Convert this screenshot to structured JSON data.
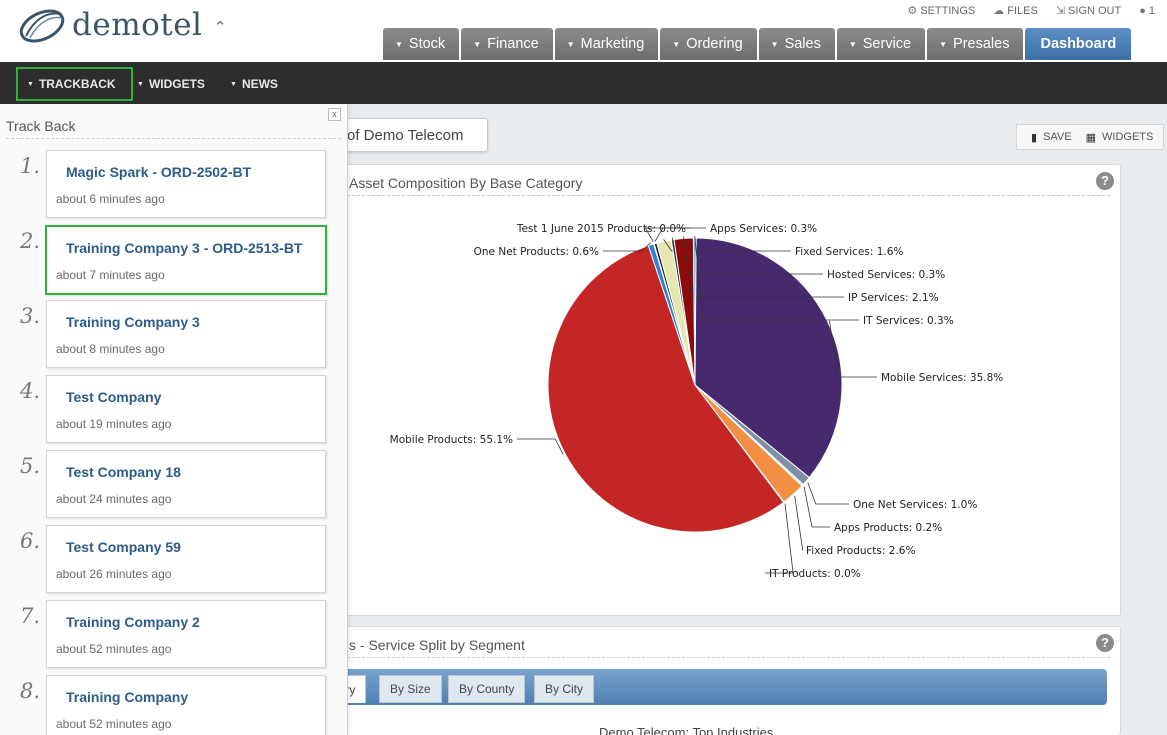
{
  "header": {
    "logo_text": "demotel",
    "toplinks": [
      {
        "icon": "gear-icon",
        "label": "SETTINGS"
      },
      {
        "icon": "cloud-icon",
        "label": "FILES"
      },
      {
        "icon": "signout-icon",
        "label": "SIGN OUT"
      },
      {
        "icon": "chat-icon",
        "label": "1"
      }
    ],
    "tabs": [
      {
        "label": "Stock"
      },
      {
        "label": "Finance"
      },
      {
        "label": "Marketing"
      },
      {
        "label": "Ordering"
      },
      {
        "label": "Sales"
      },
      {
        "label": "Service"
      },
      {
        "label": "Presales"
      },
      {
        "label": "Dashboard",
        "active": true
      }
    ]
  },
  "subnav": {
    "items": [
      {
        "label": "TRACKBACK"
      },
      {
        "label": "WIDGETS"
      },
      {
        "label": "NEWS"
      }
    ]
  },
  "dashboard": {
    "title": "of Demo Telecom",
    "save_label": "SAVE",
    "widgets_label": "WIDGETS"
  },
  "panel1": {
    "title": "Asset Composition By Base Category",
    "help": "?"
  },
  "panel2": {
    "title": "s - Service Split by Segment",
    "help": "?",
    "tabs": [
      {
        "label": "try"
      },
      {
        "label": "By Size"
      },
      {
        "label": "By County"
      },
      {
        "label": "By City"
      }
    ],
    "caption": "Demo Telecom: Top Industries"
  },
  "chart_data": {
    "type": "pie",
    "title": "Asset Composition By Base Category",
    "series": [
      {
        "name": "Mobile Services",
        "value": 35.8,
        "label": "Mobile Services: 35.8%",
        "color": "#472a6e"
      },
      {
        "name": "One Net Services",
        "value": 1.0,
        "label": "One Net Services: 1.0%",
        "color": "#7f8fa6"
      },
      {
        "name": "Apps Products",
        "value": 0.2,
        "label": "Apps Products: 0.2%",
        "color": "#91e8e1"
      },
      {
        "name": "Fixed Products",
        "value": 2.6,
        "label": "Fixed Products: 2.6%",
        "color": "#f28f43"
      },
      {
        "name": "IT Products",
        "value": 0.0,
        "label": "IT Products: 0.0%",
        "color": "#77a1e5"
      },
      {
        "name": "Mobile Products",
        "value": 55.1,
        "label": "Mobile Products: 55.1%",
        "color": "#c42525"
      },
      {
        "name": "One Net Products",
        "value": 0.6,
        "label": "One Net Products: 0.6%",
        "color": "#2f7ed8"
      },
      {
        "name": "Test 1 June 2015 Products",
        "value": 0.0,
        "label": "Test 1 June 2015 Products: 0.0%",
        "color": "#a6c96a"
      },
      {
        "name": "Apps Services",
        "value": 0.3,
        "label": "Apps Services: 0.3%",
        "color": "#0d233a"
      },
      {
        "name": "Fixed Services",
        "value": 1.6,
        "label": "Fixed Services: 1.6%",
        "color": "#e6e6b0"
      },
      {
        "name": "Hosted Services",
        "value": 0.3,
        "label": "Hosted Services: 0.3%",
        "color": "#1f3b5a"
      },
      {
        "name": "IP Services",
        "value": 2.1,
        "label": "IP Services: 2.1%",
        "color": "#8b0a0a"
      },
      {
        "name": "IT Services",
        "value": 0.3,
        "label": "IT Services: 0.3%",
        "color": "#5bb5d6"
      }
    ]
  },
  "trackback": {
    "title": "Track Back",
    "close": "x",
    "items": [
      {
        "num": "1.",
        "name": "Magic Spark - ORD-2502-BT",
        "time": "about 6 minutes ago"
      },
      {
        "num": "2.",
        "name": "Training Company 3 - ORD-2513-BT",
        "time": "about 7 minutes ago",
        "highlighted": true
      },
      {
        "num": "3.",
        "name": "Training Company 3",
        "time": "about 8 minutes ago"
      },
      {
        "num": "4.",
        "name": "Test Company",
        "time": "about 19 minutes ago"
      },
      {
        "num": "5.",
        "name": "Test Company 18",
        "time": "about 24 minutes ago"
      },
      {
        "num": "6.",
        "name": "Test Company 59",
        "time": "about 26 minutes ago"
      },
      {
        "num": "7.",
        "name": "Training Company 2",
        "time": "about 52 minutes ago"
      },
      {
        "num": "8.",
        "name": "Training Company",
        "time": "about 52 minutes ago"
      }
    ]
  }
}
